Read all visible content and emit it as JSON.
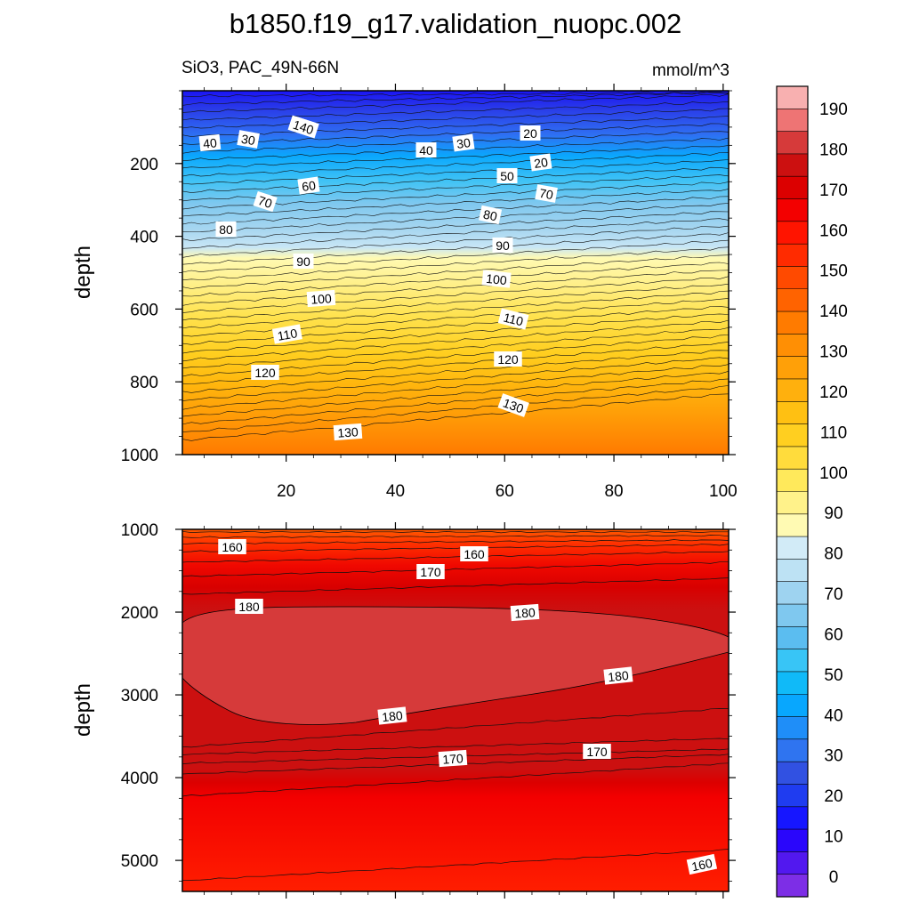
{
  "chart_data": {
    "type": "contour",
    "title": "b1850.f19_g17.validation_nuopc.002",
    "variable_label": "SiO3, PAC_49N-66N",
    "units": "mmol/m^3",
    "ylabel": "depth",
    "xlabel": "",
    "x_ticks": [
      "20",
      "40",
      "60",
      "80",
      "100"
    ],
    "xlim": [
      1,
      101
    ],
    "colorbar": {
      "labels": [
        "0",
        "10",
        "20",
        "30",
        "40",
        "50",
        "60",
        "70",
        "80",
        "90",
        "100",
        "110",
        "120",
        "130",
        "140",
        "150",
        "160",
        "170",
        "180",
        "190"
      ],
      "colors": [
        "#7d2ee6",
        "#5218ef",
        "#2a06fb",
        "#1616ff",
        "#1f3cf0",
        "#3151e2",
        "#2f74f0",
        "#1f8ef8",
        "#08a7fe",
        "#10baf8",
        "#38c5f6",
        "#5bbdf0",
        "#7fc8ef",
        "#9ed3f0",
        "#bde2f4",
        "#d2ebf7",
        "#fffab3",
        "#fff28a",
        "#ffe95b",
        "#ffdc3c",
        "#ffcf20",
        "#ffc012",
        "#ffb00d",
        "#ffa008",
        "#ff8f04",
        "#ff7b00",
        "#ff6300",
        "#ff4a00",
        "#ff2b00",
        "#ff1400",
        "#f30000",
        "#dc0000",
        "#cc1010",
        "#d63a3a",
        "#ee7474",
        "#f8b0b0"
      ]
    },
    "panels": [
      {
        "name": "upper",
        "y_ticks": [
          "200",
          "400",
          "600",
          "800",
          "1000"
        ],
        "ylim": [
          0,
          1000
        ],
        "contour_labels": [
          "20",
          "30",
          "40",
          "20",
          "40",
          "30",
          "20",
          "50",
          "60",
          "70",
          "70",
          "80",
          "80",
          "90",
          "90",
          "100",
          "100",
          "110",
          "110",
          "120",
          "120",
          "130",
          "130",
          "140"
        ]
      },
      {
        "name": "lower",
        "y_ticks": [
          "1000",
          "2000",
          "3000",
          "4000",
          "5000"
        ],
        "ylim": [
          1000,
          5375
        ],
        "contour_labels": [
          "160",
          "160",
          "170",
          "180",
          "180",
          "180",
          "180",
          "170",
          "170",
          "160"
        ]
      }
    ]
  }
}
